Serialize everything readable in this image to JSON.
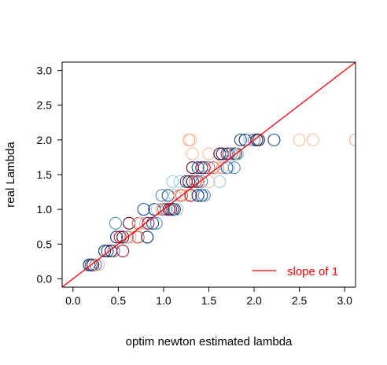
{
  "chart_data": {
    "type": "scatter",
    "title": "",
    "xlabel": "optim newton estimated lambda",
    "ylabel": "real Lambda",
    "xlim": [
      -0.12,
      3.12
    ],
    "ylim": [
      -0.12,
      3.12
    ],
    "xticks": [
      0.0,
      0.5,
      1.0,
      1.5,
      2.0,
      2.5,
      3.0
    ],
    "yticks": [
      0.0,
      0.5,
      1.0,
      1.5,
      2.0,
      2.5,
      3.0
    ],
    "xtick_labels": [
      "0.0",
      "0.5",
      "1.0",
      "1.5",
      "2.0",
      "2.5",
      "3.0"
    ],
    "ytick_labels": [
      "0.0",
      "0.5",
      "1.0",
      "1.5",
      "2.0",
      "2.5",
      "3.0"
    ],
    "grid": false,
    "legend": {
      "position": "bottom-right",
      "entries": [
        {
          "label": "slope of 1",
          "color": "#ff0000",
          "marker": "line"
        }
      ]
    },
    "reference_line": {
      "label": "slope of 1",
      "slope": 1,
      "intercept": 0,
      "color": "#ff0000"
    },
    "colors": [
      "#0d2f6b",
      "#1f4e8c",
      "#4f8fc0",
      "#9ecae1",
      "#fcbba1",
      "#f4a582",
      "#d6604d",
      "#b2182b",
      "#67001f"
    ],
    "points": [
      {
        "x": 0.18,
        "y": 0.2,
        "c": 0
      },
      {
        "x": 0.2,
        "y": 0.2,
        "c": 1
      },
      {
        "x": 0.22,
        "y": 0.2,
        "c": 8
      },
      {
        "x": 0.25,
        "y": 0.2,
        "c": 2
      },
      {
        "x": 0.28,
        "y": 0.2,
        "c": 4
      },
      {
        "x": 0.35,
        "y": 0.4,
        "c": 0
      },
      {
        "x": 0.38,
        "y": 0.4,
        "c": 1
      },
      {
        "x": 0.42,
        "y": 0.4,
        "c": 8
      },
      {
        "x": 0.45,
        "y": 0.4,
        "c": 2
      },
      {
        "x": 0.55,
        "y": 0.4,
        "c": 7
      },
      {
        "x": 0.48,
        "y": 0.6,
        "c": 0
      },
      {
        "x": 0.52,
        "y": 0.6,
        "c": 7
      },
      {
        "x": 0.55,
        "y": 0.6,
        "c": 8
      },
      {
        "x": 0.6,
        "y": 0.6,
        "c": 2
      },
      {
        "x": 0.63,
        "y": 0.6,
        "c": 5
      },
      {
        "x": 0.7,
        "y": 0.6,
        "c": 4
      },
      {
        "x": 0.72,
        "y": 0.6,
        "c": 6
      },
      {
        "x": 0.82,
        "y": 0.6,
        "c": 0
      },
      {
        "x": 0.47,
        "y": 0.8,
        "c": 2
      },
      {
        "x": 0.62,
        "y": 0.8,
        "c": 8
      },
      {
        "x": 0.72,
        "y": 0.8,
        "c": 6
      },
      {
        "x": 0.75,
        "y": 0.8,
        "c": 4
      },
      {
        "x": 0.8,
        "y": 0.8,
        "c": 3
      },
      {
        "x": 0.83,
        "y": 0.8,
        "c": 7
      },
      {
        "x": 0.88,
        "y": 0.8,
        "c": 1
      },
      {
        "x": 0.92,
        "y": 0.8,
        "c": 2
      },
      {
        "x": 0.78,
        "y": 1.0,
        "c": 1
      },
      {
        "x": 0.9,
        "y": 1.0,
        "c": 0
      },
      {
        "x": 0.93,
        "y": 1.0,
        "c": 3
      },
      {
        "x": 0.98,
        "y": 1.0,
        "c": 5
      },
      {
        "x": 1.0,
        "y": 1.0,
        "c": 6
      },
      {
        "x": 1.03,
        "y": 1.0,
        "c": 2
      },
      {
        "x": 1.06,
        "y": 1.0,
        "c": 8
      },
      {
        "x": 1.08,
        "y": 1.0,
        "c": 7
      },
      {
        "x": 1.1,
        "y": 1.0,
        "c": 1
      },
      {
        "x": 1.12,
        "y": 1.0,
        "c": 0
      },
      {
        "x": 1.15,
        "y": 1.0,
        "c": 3
      },
      {
        "x": 0.98,
        "y": 1.2,
        "c": 2
      },
      {
        "x": 1.05,
        "y": 1.2,
        "c": 1
      },
      {
        "x": 1.12,
        "y": 1.2,
        "c": 3
      },
      {
        "x": 1.18,
        "y": 1.2,
        "c": 5
      },
      {
        "x": 1.2,
        "y": 1.2,
        "c": 6
      },
      {
        "x": 1.25,
        "y": 1.2,
        "c": 4
      },
      {
        "x": 1.3,
        "y": 1.2,
        "c": 7
      },
      {
        "x": 1.38,
        "y": 1.2,
        "c": 0
      },
      {
        "x": 1.42,
        "y": 1.2,
        "c": 1
      },
      {
        "x": 1.45,
        "y": 1.2,
        "c": 2
      },
      {
        "x": 1.1,
        "y": 1.4,
        "c": 3
      },
      {
        "x": 1.18,
        "y": 1.4,
        "c": 3
      },
      {
        "x": 1.25,
        "y": 1.4,
        "c": 1
      },
      {
        "x": 1.28,
        "y": 1.4,
        "c": 8
      },
      {
        "x": 1.32,
        "y": 1.4,
        "c": 0
      },
      {
        "x": 1.35,
        "y": 1.4,
        "c": 6
      },
      {
        "x": 1.38,
        "y": 1.4,
        "c": 7
      },
      {
        "x": 1.42,
        "y": 1.4,
        "c": 2
      },
      {
        "x": 1.5,
        "y": 1.4,
        "c": 4
      },
      {
        "x": 1.62,
        "y": 1.4,
        "c": 3
      },
      {
        "x": 1.32,
        "y": 1.6,
        "c": 8
      },
      {
        "x": 1.38,
        "y": 1.6,
        "c": 1
      },
      {
        "x": 1.42,
        "y": 1.6,
        "c": 0
      },
      {
        "x": 1.45,
        "y": 1.6,
        "c": 7
      },
      {
        "x": 1.5,
        "y": 1.6,
        "c": 2
      },
      {
        "x": 1.55,
        "y": 1.6,
        "c": 6
      },
      {
        "x": 1.6,
        "y": 1.6,
        "c": 4
      },
      {
        "x": 1.65,
        "y": 1.6,
        "c": 5
      },
      {
        "x": 1.7,
        "y": 1.6,
        "c": 1
      },
      {
        "x": 1.72,
        "y": 1.6,
        "c": 3
      },
      {
        "x": 1.78,
        "y": 1.6,
        "c": 2
      },
      {
        "x": 1.5,
        "y": 1.8,
        "c": 4
      },
      {
        "x": 1.62,
        "y": 1.8,
        "c": 8
      },
      {
        "x": 1.65,
        "y": 1.8,
        "c": 0
      },
      {
        "x": 1.7,
        "y": 1.8,
        "c": 7
      },
      {
        "x": 1.72,
        "y": 1.8,
        "c": 1
      },
      {
        "x": 1.75,
        "y": 1.8,
        "c": 2
      },
      {
        "x": 1.78,
        "y": 1.8,
        "c": 6
      },
      {
        "x": 1.8,
        "y": 1.8,
        "c": 0
      },
      {
        "x": 1.82,
        "y": 1.8,
        "c": 3
      },
      {
        "x": 1.32,
        "y": 1.8,
        "c": 4
      },
      {
        "x": 1.28,
        "y": 2.0,
        "c": 5
      },
      {
        "x": 1.3,
        "y": 2.0,
        "c": 4
      },
      {
        "x": 1.85,
        "y": 2.0,
        "c": 1
      },
      {
        "x": 1.9,
        "y": 2.0,
        "c": 0
      },
      {
        "x": 1.95,
        "y": 2.0,
        "c": 3
      },
      {
        "x": 2.0,
        "y": 2.0,
        "c": 2
      },
      {
        "x": 2.03,
        "y": 2.0,
        "c": 8
      },
      {
        "x": 2.05,
        "y": 2.0,
        "c": 0
      },
      {
        "x": 2.22,
        "y": 2.0,
        "c": 1
      },
      {
        "x": 2.5,
        "y": 2.0,
        "c": 4
      },
      {
        "x": 2.65,
        "y": 2.0,
        "c": 4
      },
      {
        "x": 3.12,
        "y": 2.0,
        "c": 5
      }
    ]
  }
}
